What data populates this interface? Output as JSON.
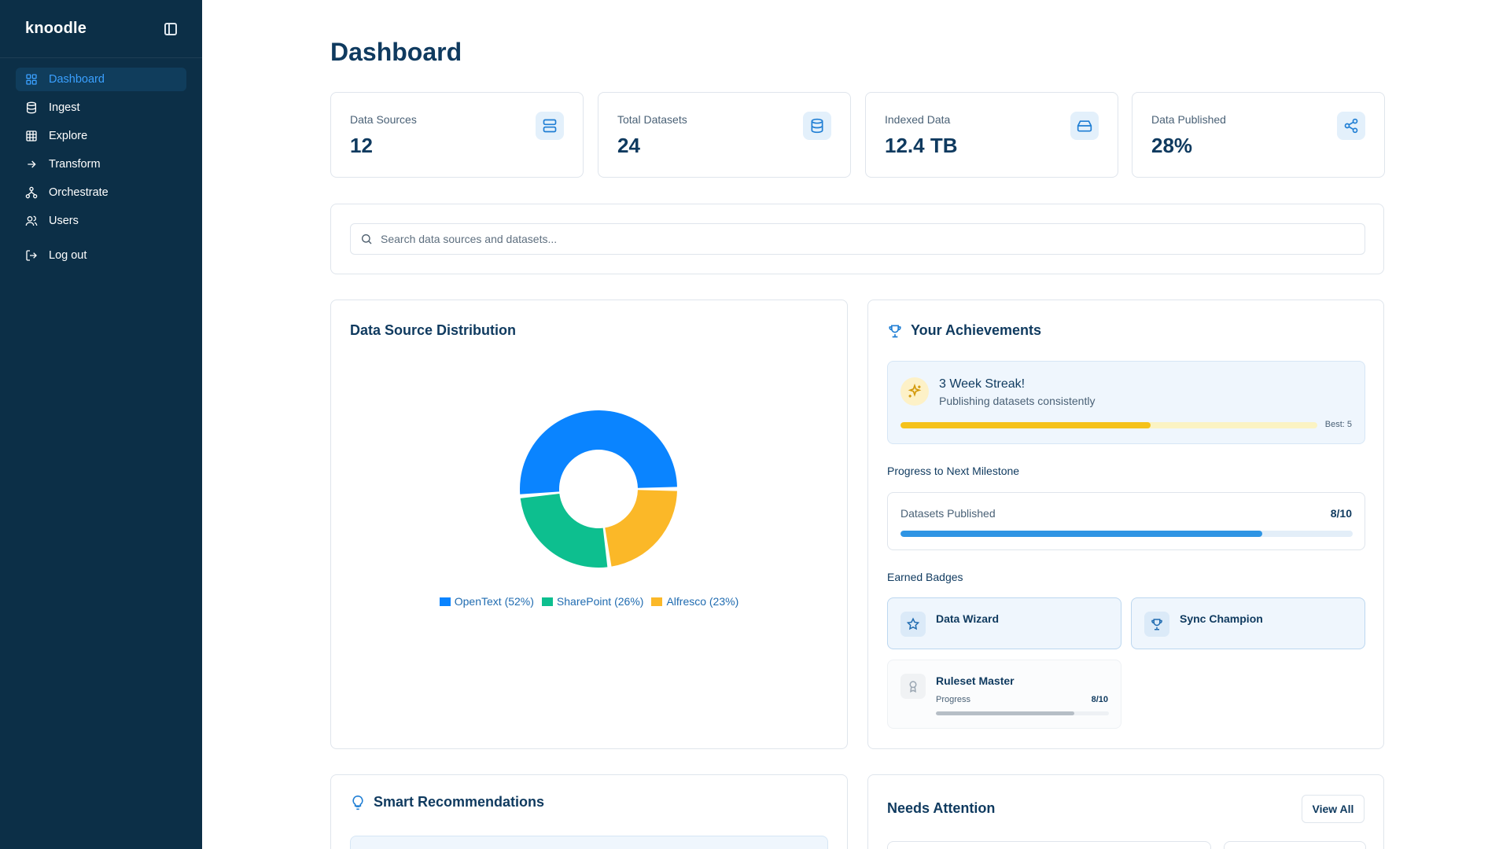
{
  "app": {
    "logo": "knoodle"
  },
  "sidebar": {
    "items": [
      {
        "label": "Dashboard",
        "icon": "grid-icon",
        "active": true
      },
      {
        "label": "Ingest",
        "icon": "database-icon"
      },
      {
        "label": "Explore",
        "icon": "table-icon"
      },
      {
        "label": "Transform",
        "icon": "arrow-right-icon"
      },
      {
        "label": "Orchestrate",
        "icon": "workflow-icon"
      },
      {
        "label": "Users",
        "icon": "users-icon"
      }
    ],
    "logout": "Log out"
  },
  "page": {
    "title": "Dashboard"
  },
  "stats": [
    {
      "label": "Data Sources",
      "value": "12",
      "icon": "server-icon"
    },
    {
      "label": "Total Datasets",
      "value": "24",
      "icon": "database-icon"
    },
    {
      "label": "Indexed Data",
      "value": "12.4 TB",
      "icon": "hard-drive-icon"
    },
    {
      "label": "Data Published",
      "value": "28%",
      "icon": "share-icon"
    }
  ],
  "search": {
    "placeholder": "Search data sources and datasets..."
  },
  "distribution": {
    "title": "Data Source Distribution",
    "legend": [
      "OpenText (52%)",
      "SharePoint (26%)",
      "Alfresco (23%)"
    ]
  },
  "chart_data": {
    "type": "pie",
    "categories": [
      "OpenText",
      "SharePoint",
      "Alfresco"
    ],
    "values": [
      52,
      26,
      23
    ],
    "colors": [
      "#0a84ff",
      "#0dbf8f",
      "#fbb828"
    ]
  },
  "achievements": {
    "title": "Your Achievements",
    "streak": {
      "title": "3 Week Streak!",
      "subtitle": "Publishing datasets consistently",
      "best": "Best: 5",
      "progress": 0.6
    },
    "milestone_heading": "Progress to Next Milestone",
    "milestone": {
      "label": "Datasets Published",
      "value": "8/10",
      "progress": 0.8
    },
    "badges_heading": "Earned Badges",
    "badges": [
      {
        "name": "Data Wizard",
        "icon": "star-icon"
      },
      {
        "name": "Sync Champion",
        "icon": "trophy-icon"
      },
      {
        "name": "Ruleset Master",
        "icon": "award-icon",
        "progress_label": "Progress",
        "progress_value": "8/10",
        "progress": 0.8
      }
    ]
  },
  "recommendations": {
    "title": "Smart Recommendations"
  },
  "attention": {
    "title": "Needs Attention",
    "view_all": "View All"
  }
}
